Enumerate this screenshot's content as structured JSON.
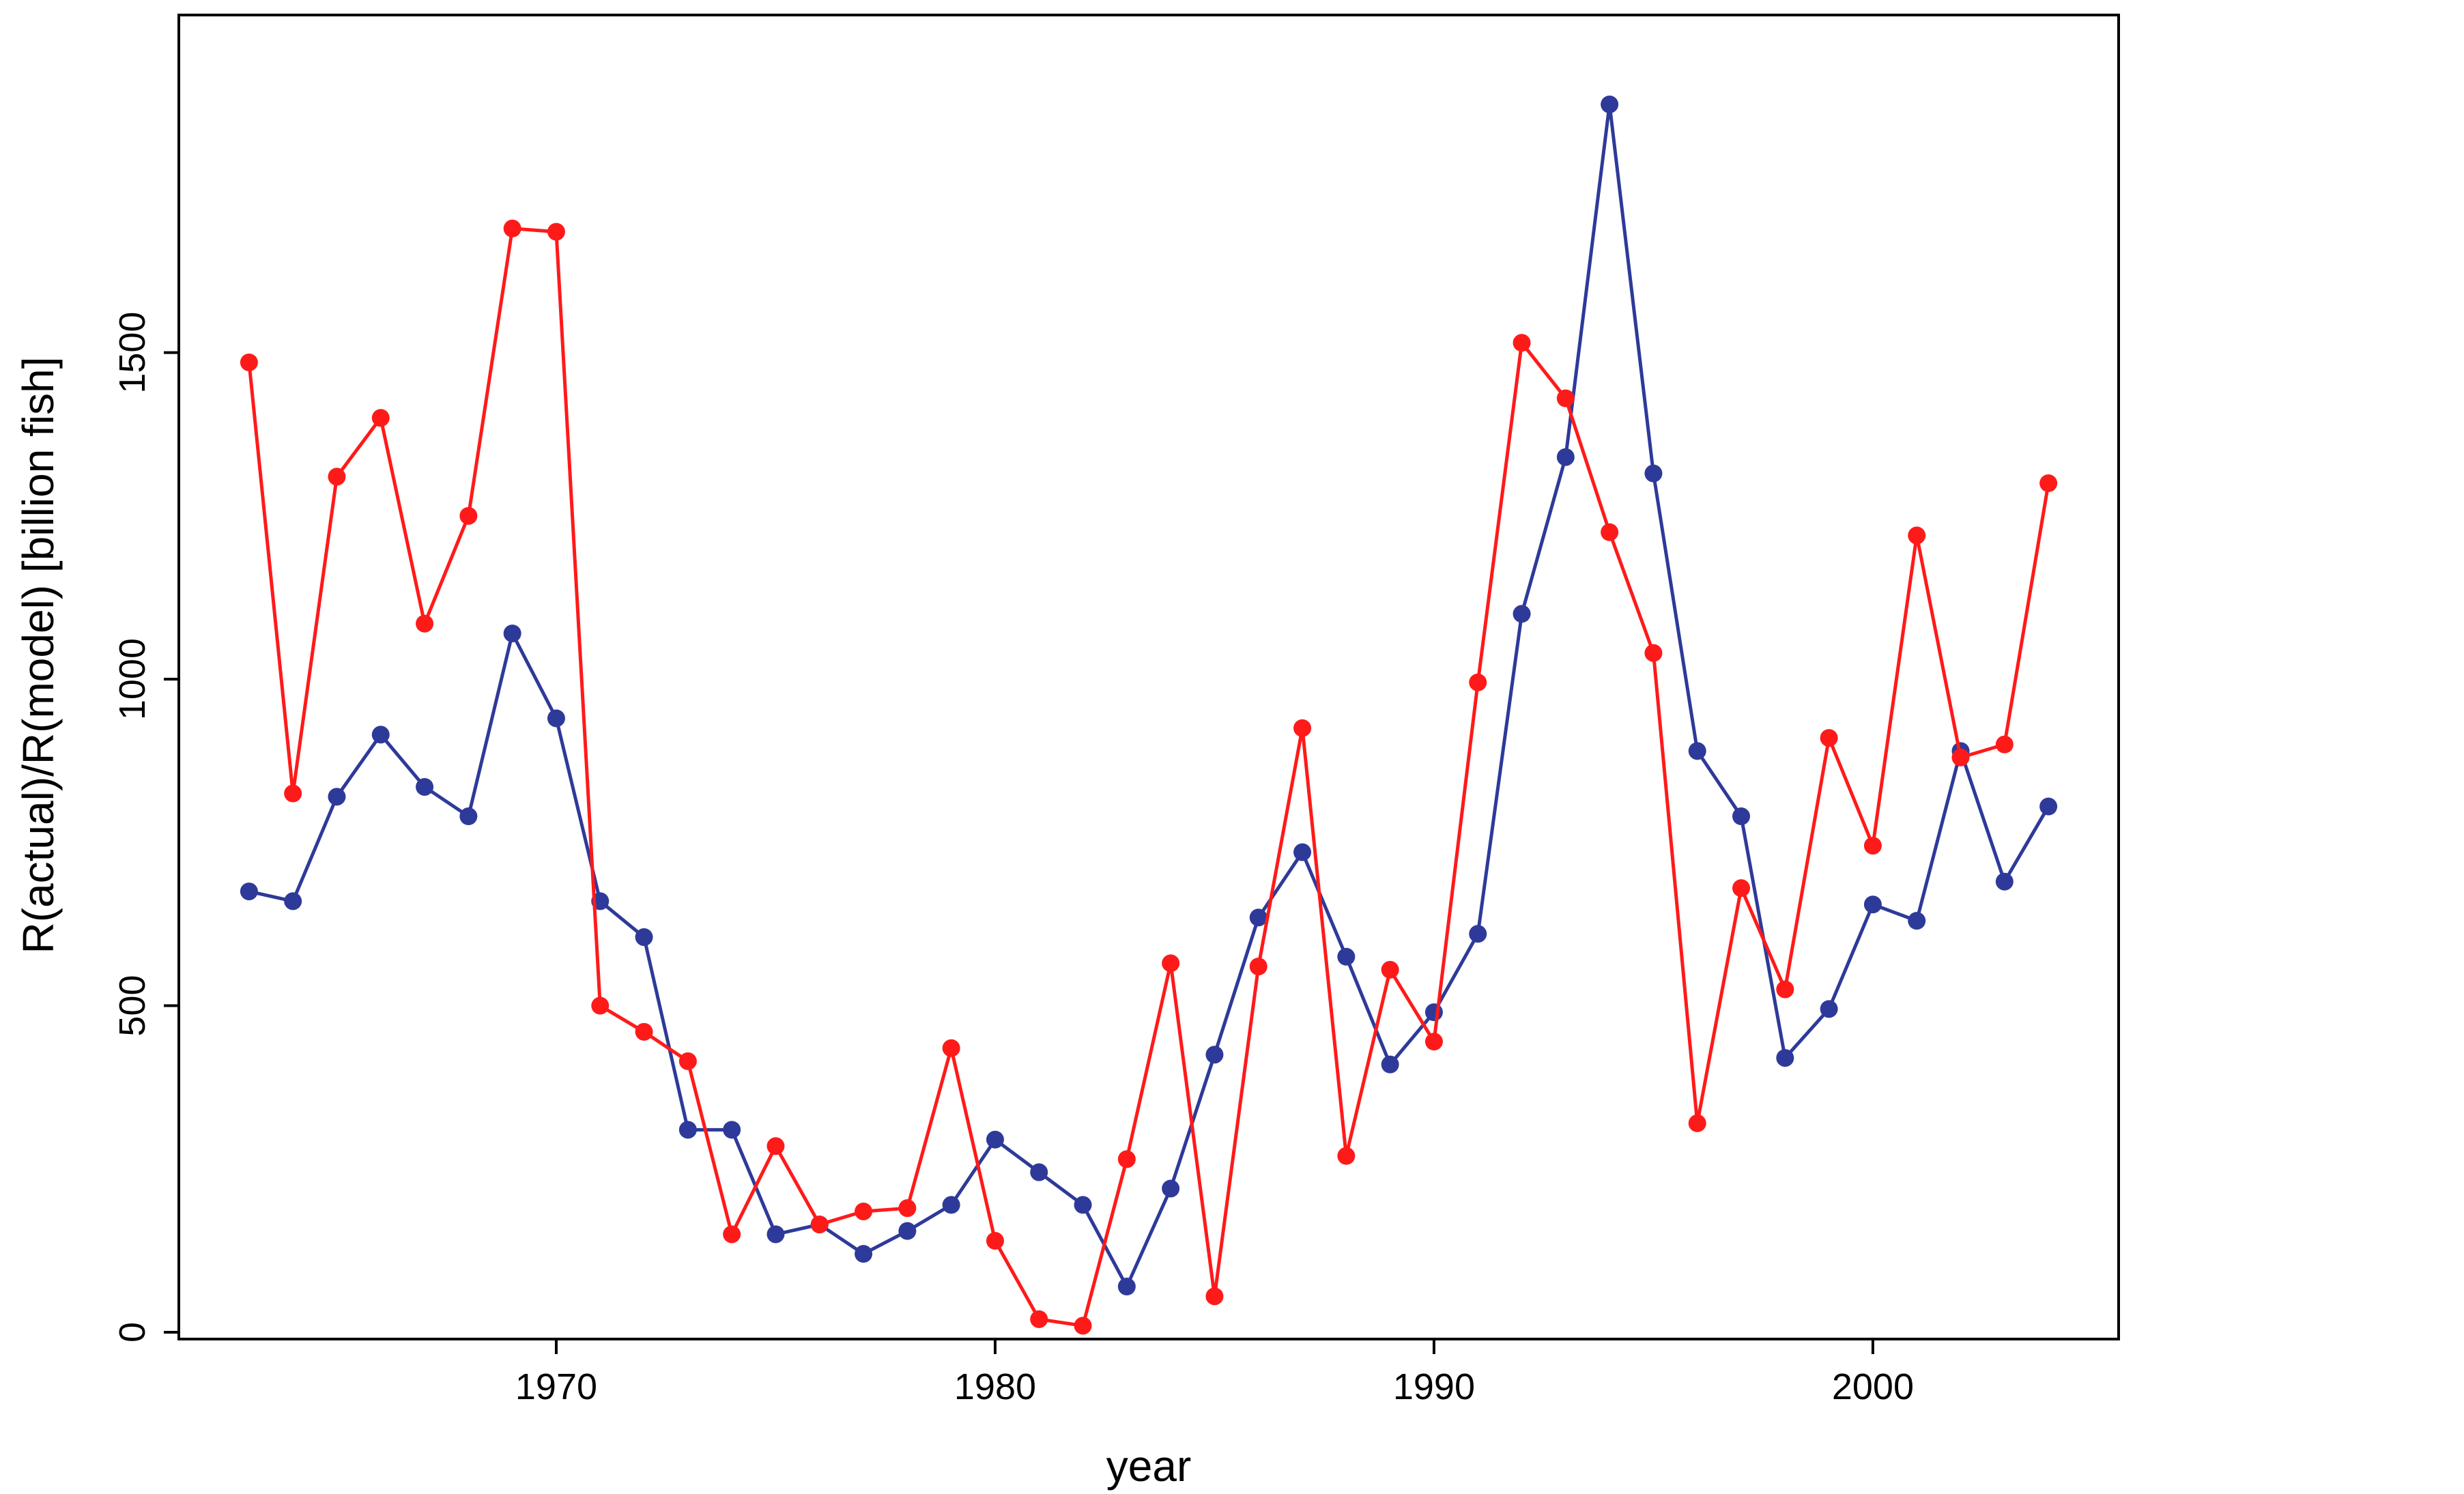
{
  "chart_data": {
    "type": "line",
    "title": "",
    "xlabel": "year",
    "ylabel": "R(actual)/R(model) [billion fish]",
    "xlim": [
      1961.4,
      2005.6
    ],
    "ylim": [
      0,
      1950
    ],
    "xticks": [
      1970,
      1980,
      1990,
      2000
    ],
    "yticks": [
      0,
      500,
      1000,
      1500
    ],
    "grid": false,
    "legend": "none",
    "x": [
      1963,
      1964,
      1965,
      1966,
      1967,
      1968,
      1969,
      1970,
      1971,
      1972,
      1973,
      1974,
      1975,
      1976,
      1977,
      1978,
      1979,
      1980,
      1981,
      1982,
      1983,
      1984,
      1985,
      1986,
      1987,
      1988,
      1989,
      1990,
      1991,
      1992,
      1993,
      1994,
      1995,
      1996,
      1997,
      1998,
      1999,
      2000,
      2001,
      2002,
      2003,
      2004
    ],
    "series": [
      {
        "color": "#2e3a99",
        "values": [
          675,
          660,
          820,
          915,
          835,
          790,
          1070,
          940,
          660,
          605,
          310,
          310,
          150,
          165,
          120,
          155,
          195,
          295,
          245,
          195,
          70,
          220,
          425,
          635,
          735,
          575,
          410,
          490,
          610,
          1100,
          1340,
          1880,
          1315,
          890,
          790,
          420,
          495,
          655,
          630,
          890,
          690,
          805
        ]
      },
      {
        "color": "#ff1a1a",
        "values": [
          1485,
          825,
          1310,
          1400,
          1085,
          1250,
          1690,
          1685,
          500,
          460,
          415,
          150,
          285,
          165,
          185,
          190,
          435,
          140,
          20,
          10,
          265,
          565,
          55,
          560,
          925,
          270,
          555,
          445,
          995,
          1515,
          1430,
          1225,
          1040,
          320,
          680,
          525,
          910,
          745,
          1220,
          880,
          900,
          1300
        ]
      }
    ]
  }
}
